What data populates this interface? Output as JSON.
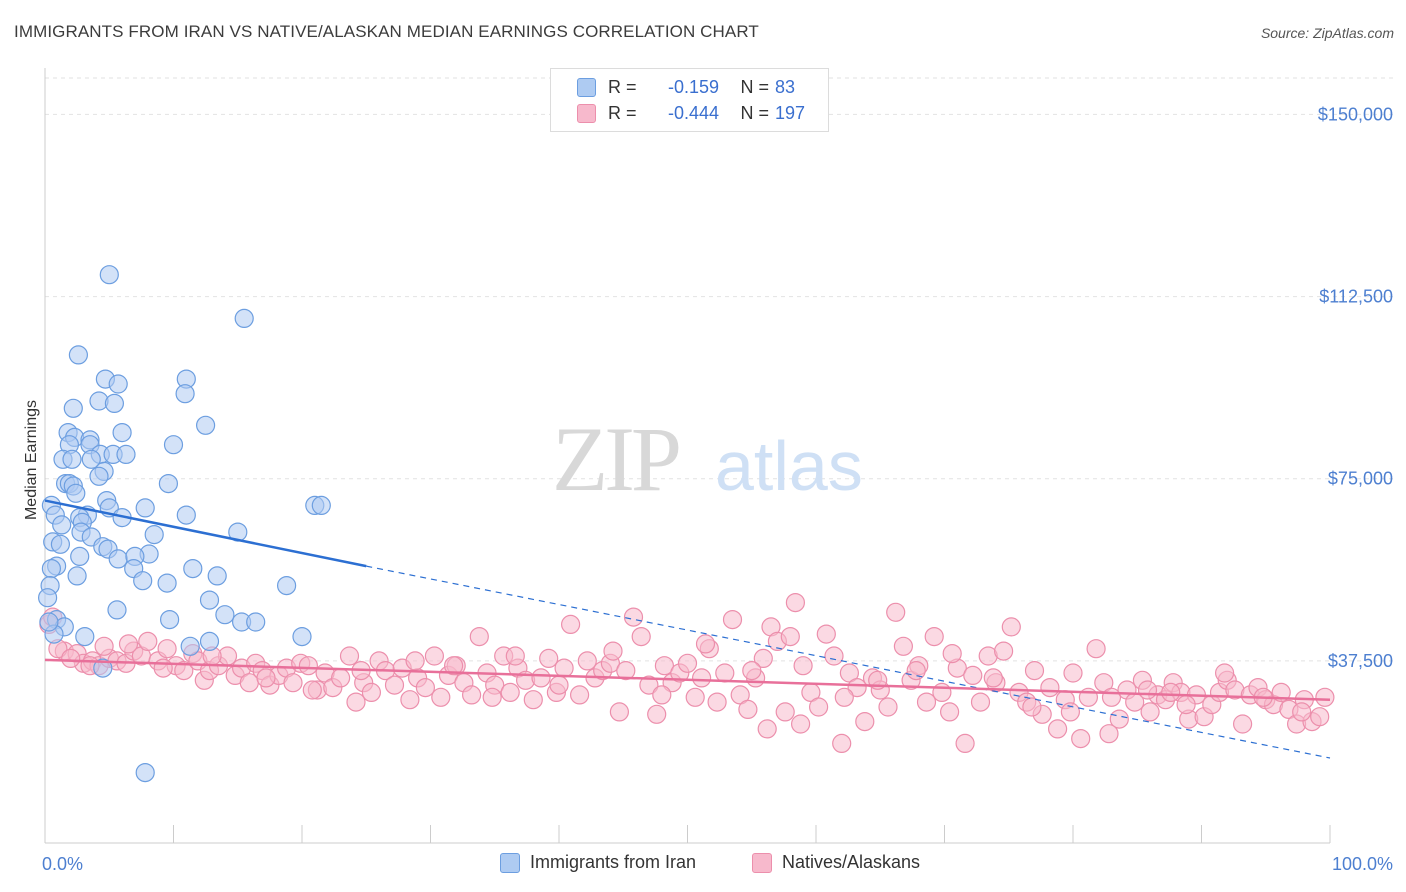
{
  "title": "IMMIGRANTS FROM IRAN VS NATIVE/ALASKAN MEDIAN EARNINGS CORRELATION CHART",
  "source": "Source: ZipAtlas.com",
  "watermark": {
    "zip": "ZIP",
    "atlas": "atlas"
  },
  "colors": {
    "blue_fill": "#aecbf2",
    "blue_stroke": "#6c9ee0",
    "blue_line": "#2c6fd2",
    "pink_fill": "#f7b9cc",
    "pink_stroke": "#ec8fac",
    "pink_line": "#e8709a",
    "accent_text": "#3a6fcf",
    "grid": "#e2e2e2"
  },
  "legend": {
    "rows": [
      {
        "r_label": "R =",
        "r_value": "-0.159",
        "n_label": "N =",
        "n_value": "83",
        "series": "blue"
      },
      {
        "r_label": "R =",
        "r_value": "-0.444",
        "n_label": "N =",
        "n_value": "197",
        "series": "pink"
      }
    ]
  },
  "bottom_legend": [
    {
      "label": "Immigrants from Iran",
      "series": "blue"
    },
    {
      "label": "Natives/Alaskans",
      "series": "pink"
    }
  ],
  "chart_data": {
    "type": "scatter",
    "title": "IMMIGRANTS FROM IRAN VS NATIVE/ALASKAN MEDIAN EARNINGS CORRELATION CHART",
    "xlabel": "",
    "ylabel": "Median Earnings",
    "xlim": [
      0,
      100
    ],
    "ylim": [
      0,
      157500
    ],
    "x_tick_labels": [
      "0.0%",
      "100.0%"
    ],
    "y_ticks": [
      37500,
      75000,
      112500,
      150000
    ],
    "y_tick_labels": [
      "$37,500",
      "$75,000",
      "$112,500",
      "$150,000"
    ],
    "grid": true,
    "legend_position": "top-center",
    "series": [
      {
        "name": "Immigrants from Iran",
        "color": "blue",
        "trend": {
          "x0": 0,
          "y0": 70500,
          "x1": 25,
          "y1": 57000,
          "dash_to_x": 100,
          "dash_to_y": 17500
        },
        "points": [
          [
            5,
            117000
          ],
          [
            15.5,
            108000
          ],
          [
            2.6,
            100500
          ],
          [
            4.7,
            95500
          ],
          [
            11,
            95500
          ],
          [
            5.7,
            94500
          ],
          [
            10.9,
            92500
          ],
          [
            4.2,
            91000
          ],
          [
            5.4,
            90500
          ],
          [
            2.2,
            89500
          ],
          [
            12.5,
            86000
          ],
          [
            1.8,
            84500
          ],
          [
            6,
            84500
          ],
          [
            2.3,
            83500
          ],
          [
            3.5,
            83000
          ],
          [
            1.9,
            82000
          ],
          [
            3.5,
            82000
          ],
          [
            10,
            82000
          ],
          [
            4.3,
            80000
          ],
          [
            5.3,
            80000
          ],
          [
            6.3,
            80000
          ],
          [
            1.4,
            79000
          ],
          [
            2.1,
            79000
          ],
          [
            3.6,
            79000
          ],
          [
            4.6,
            76500
          ],
          [
            4.2,
            75500
          ],
          [
            1.6,
            74000
          ],
          [
            1.9,
            74000
          ],
          [
            2.2,
            73500
          ],
          [
            9.6,
            74000
          ],
          [
            2.4,
            72000
          ],
          [
            4.8,
            70500
          ],
          [
            5,
            69000
          ],
          [
            7.8,
            69000
          ],
          [
            0.5,
            69500
          ],
          [
            21,
            69500
          ],
          [
            21.5,
            69500
          ],
          [
            0.8,
            67500
          ],
          [
            3.3,
            67500
          ],
          [
            2.7,
            67000
          ],
          [
            6,
            67000
          ],
          [
            11,
            67500
          ],
          [
            1.3,
            65500
          ],
          [
            2.9,
            66000
          ],
          [
            2.8,
            64000
          ],
          [
            15,
            64000
          ],
          [
            3.6,
            63000
          ],
          [
            8.5,
            63500
          ],
          [
            0.6,
            62000
          ],
          [
            4.5,
            61000
          ],
          [
            1.2,
            61500
          ],
          [
            4.9,
            60500
          ],
          [
            2.7,
            59000
          ],
          [
            5.7,
            58500
          ],
          [
            8.1,
            59500
          ],
          [
            7,
            59000
          ],
          [
            0.9,
            57000
          ],
          [
            0.5,
            56500
          ],
          [
            6.9,
            56500
          ],
          [
            11.5,
            56500
          ],
          [
            2.5,
            55000
          ],
          [
            9.5,
            53500
          ],
          [
            0.4,
            53000
          ],
          [
            13.4,
            55000
          ],
          [
            7.6,
            54000
          ],
          [
            0.2,
            50500
          ],
          [
            12.8,
            50000
          ],
          [
            18.8,
            53000
          ],
          [
            5.6,
            48000
          ],
          [
            0.9,
            46000
          ],
          [
            14,
            47000
          ],
          [
            9.7,
            46000
          ],
          [
            15.3,
            45500
          ],
          [
            16.4,
            45500
          ],
          [
            1.5,
            44500
          ],
          [
            12.8,
            41500
          ],
          [
            20,
            42500
          ],
          [
            0.7,
            43000
          ],
          [
            3.1,
            42500
          ],
          [
            11.3,
            40500
          ],
          [
            4.5,
            36000
          ],
          [
            7.8,
            14500
          ],
          [
            0.3,
            45500
          ]
        ]
      },
      {
        "name": "Natives/Alaskans",
        "color": "pink",
        "trend": {
          "x0": 0,
          "y0": 37700,
          "x1": 100,
          "y1": 29500
        },
        "points": [
          [
            0.3,
            45000
          ],
          [
            0.6,
            46500
          ],
          [
            1.5,
            39500
          ],
          [
            2.5,
            39000
          ],
          [
            3,
            37000
          ],
          [
            3.7,
            37500
          ],
          [
            4.2,
            36500
          ],
          [
            5,
            38000
          ],
          [
            5.6,
            37500
          ],
          [
            6.3,
            37000
          ],
          [
            6.9,
            39500
          ],
          [
            7.5,
            38500
          ],
          [
            8,
            41500
          ],
          [
            8.8,
            37500
          ],
          [
            9.5,
            40000
          ],
          [
            10.2,
            36500
          ],
          [
            10.8,
            35500
          ],
          [
            11.5,
            39000
          ],
          [
            11.9,
            37500
          ],
          [
            12.4,
            33500
          ],
          [
            12.8,
            35500
          ],
          [
            13.5,
            36500
          ],
          [
            14.2,
            38500
          ],
          [
            14.8,
            34500
          ],
          [
            15.3,
            36000
          ],
          [
            15.9,
            33000
          ],
          [
            16.4,
            37000
          ],
          [
            16.9,
            35500
          ],
          [
            17.5,
            32500
          ],
          [
            18.2,
            34500
          ],
          [
            18.8,
            36000
          ],
          [
            19.3,
            33000
          ],
          [
            19.9,
            37000
          ],
          [
            20.5,
            36500
          ],
          [
            21.2,
            31500
          ],
          [
            21.8,
            35000
          ],
          [
            22.4,
            32000
          ],
          [
            23,
            34000
          ],
          [
            23.7,
            38500
          ],
          [
            24.2,
            29000
          ],
          [
            24.8,
            33000
          ],
          [
            25.4,
            31000
          ],
          [
            26,
            37500
          ],
          [
            26.5,
            35500
          ],
          [
            27.2,
            32500
          ],
          [
            27.8,
            36000
          ],
          [
            28.4,
            29500
          ],
          [
            29,
            34000
          ],
          [
            29.6,
            32000
          ],
          [
            30.3,
            38500
          ],
          [
            30.8,
            30000
          ],
          [
            31.4,
            34500
          ],
          [
            32,
            36500
          ],
          [
            32.6,
            33000
          ],
          [
            33.2,
            30500
          ],
          [
            33.8,
            42500
          ],
          [
            34.4,
            35000
          ],
          [
            35,
            32500
          ],
          [
            35.7,
            38500
          ],
          [
            36.2,
            31000
          ],
          [
            36.8,
            36000
          ],
          [
            37.4,
            33500
          ],
          [
            38,
            29500
          ],
          [
            38.6,
            34000
          ],
          [
            39.2,
            38000
          ],
          [
            39.8,
            31000
          ],
          [
            40.4,
            36000
          ],
          [
            40.9,
            45000
          ],
          [
            41.6,
            30500
          ],
          [
            42.2,
            37500
          ],
          [
            42.8,
            34000
          ],
          [
            43.4,
            35500
          ],
          [
            44,
            37000
          ],
          [
            44.7,
            27000
          ],
          [
            45.2,
            35500
          ],
          [
            45.8,
            46500
          ],
          [
            46.4,
            42500
          ],
          [
            47,
            32500
          ],
          [
            47.6,
            26500
          ],
          [
            48.2,
            36500
          ],
          [
            48.8,
            33000
          ],
          [
            49.4,
            35000
          ],
          [
            50,
            37000
          ],
          [
            50.6,
            30000
          ],
          [
            51.1,
            34000
          ],
          [
            51.7,
            40000
          ],
          [
            52.3,
            29000
          ],
          [
            52.9,
            35000
          ],
          [
            53.5,
            46000
          ],
          [
            54.1,
            30500
          ],
          [
            54.7,
            27500
          ],
          [
            55.3,
            34000
          ],
          [
            55.9,
            38000
          ],
          [
            56.5,
            44500
          ],
          [
            57,
            41500
          ],
          [
            57.6,
            27000
          ],
          [
            58,
            42500
          ],
          [
            58.4,
            49500
          ],
          [
            59,
            36500
          ],
          [
            59.6,
            31000
          ],
          [
            60.2,
            28000
          ],
          [
            60.8,
            43000
          ],
          [
            61.4,
            38500
          ],
          [
            62,
            20500
          ],
          [
            62.6,
            35000
          ],
          [
            63.2,
            32000
          ],
          [
            63.8,
            25000
          ],
          [
            64.4,
            34000
          ],
          [
            65,
            31500
          ],
          [
            65.6,
            28000
          ],
          [
            66.2,
            47500
          ],
          [
            66.8,
            40500
          ],
          [
            67.4,
            33500
          ],
          [
            68,
            36500
          ],
          [
            68.6,
            29000
          ],
          [
            69.2,
            42500
          ],
          [
            69.8,
            31000
          ],
          [
            70.4,
            27000
          ],
          [
            71,
            36000
          ],
          [
            71.6,
            20500
          ],
          [
            72.2,
            34500
          ],
          [
            72.8,
            29000
          ],
          [
            73.4,
            38500
          ],
          [
            74,
            33000
          ],
          [
            74.6,
            39500
          ],
          [
            75.2,
            44500
          ],
          [
            75.8,
            31000
          ],
          [
            76.4,
            29000
          ],
          [
            77,
            35500
          ],
          [
            77.6,
            26500
          ],
          [
            78.2,
            32000
          ],
          [
            78.8,
            23500
          ],
          [
            79.4,
            29500
          ],
          [
            80,
            35000
          ],
          [
            80.6,
            21500
          ],
          [
            81.2,
            30000
          ],
          [
            81.8,
            40000
          ],
          [
            82.4,
            33000
          ],
          [
            83,
            30000
          ],
          [
            83.6,
            25500
          ],
          [
            84.2,
            31500
          ],
          [
            84.8,
            29000
          ],
          [
            85.4,
            33500
          ],
          [
            86,
            27000
          ],
          [
            86.6,
            30500
          ],
          [
            87.2,
            29500
          ],
          [
            87.8,
            33000
          ],
          [
            88.4,
            31000
          ],
          [
            89,
            25500
          ],
          [
            89.6,
            30500
          ],
          [
            90.2,
            26000
          ],
          [
            90.8,
            28500
          ],
          [
            91.4,
            31000
          ],
          [
            92,
            33500
          ],
          [
            92.6,
            31500
          ],
          [
            93.2,
            24500
          ],
          [
            93.8,
            30500
          ],
          [
            94.4,
            32000
          ],
          [
            95,
            29500
          ],
          [
            95.6,
            28500
          ],
          [
            96.2,
            31000
          ],
          [
            96.8,
            27500
          ],
          [
            97.4,
            24500
          ],
          [
            98,
            29500
          ],
          [
            98.6,
            25000
          ],
          [
            99.2,
            26000
          ],
          [
            99.6,
            30000
          ],
          [
            1.0,
            40000
          ],
          [
            2,
            38000
          ],
          [
            3.5,
            36500
          ],
          [
            6.5,
            41000
          ],
          [
            9.2,
            36000
          ],
          [
            13,
            38500
          ],
          [
            17.2,
            34000
          ],
          [
            20.8,
            31500
          ],
          [
            24.6,
            35500
          ],
          [
            28.8,
            37500
          ],
          [
            31.8,
            36500
          ],
          [
            36.6,
            38500
          ],
          [
            40,
            32500
          ],
          [
            44.2,
            39500
          ],
          [
            48,
            30500
          ],
          [
            51.4,
            41000
          ],
          [
            55,
            35500
          ],
          [
            58.8,
            24500
          ],
          [
            62.2,
            30000
          ],
          [
            64.8,
            33500
          ],
          [
            67.8,
            35500
          ],
          [
            70.6,
            39000
          ],
          [
            73.8,
            34000
          ],
          [
            76.8,
            28000
          ],
          [
            79.8,
            27000
          ],
          [
            82.8,
            22500
          ],
          [
            85.8,
            31500
          ],
          [
            88.8,
            28500
          ],
          [
            91.8,
            35000
          ],
          [
            94.8,
            30000
          ],
          [
            97.8,
            27000
          ],
          [
            4.6,
            40500
          ],
          [
            34.8,
            30000
          ],
          [
            56.2,
            23500
          ],
          [
            87.6,
            31000
          ]
        ]
      }
    ]
  }
}
